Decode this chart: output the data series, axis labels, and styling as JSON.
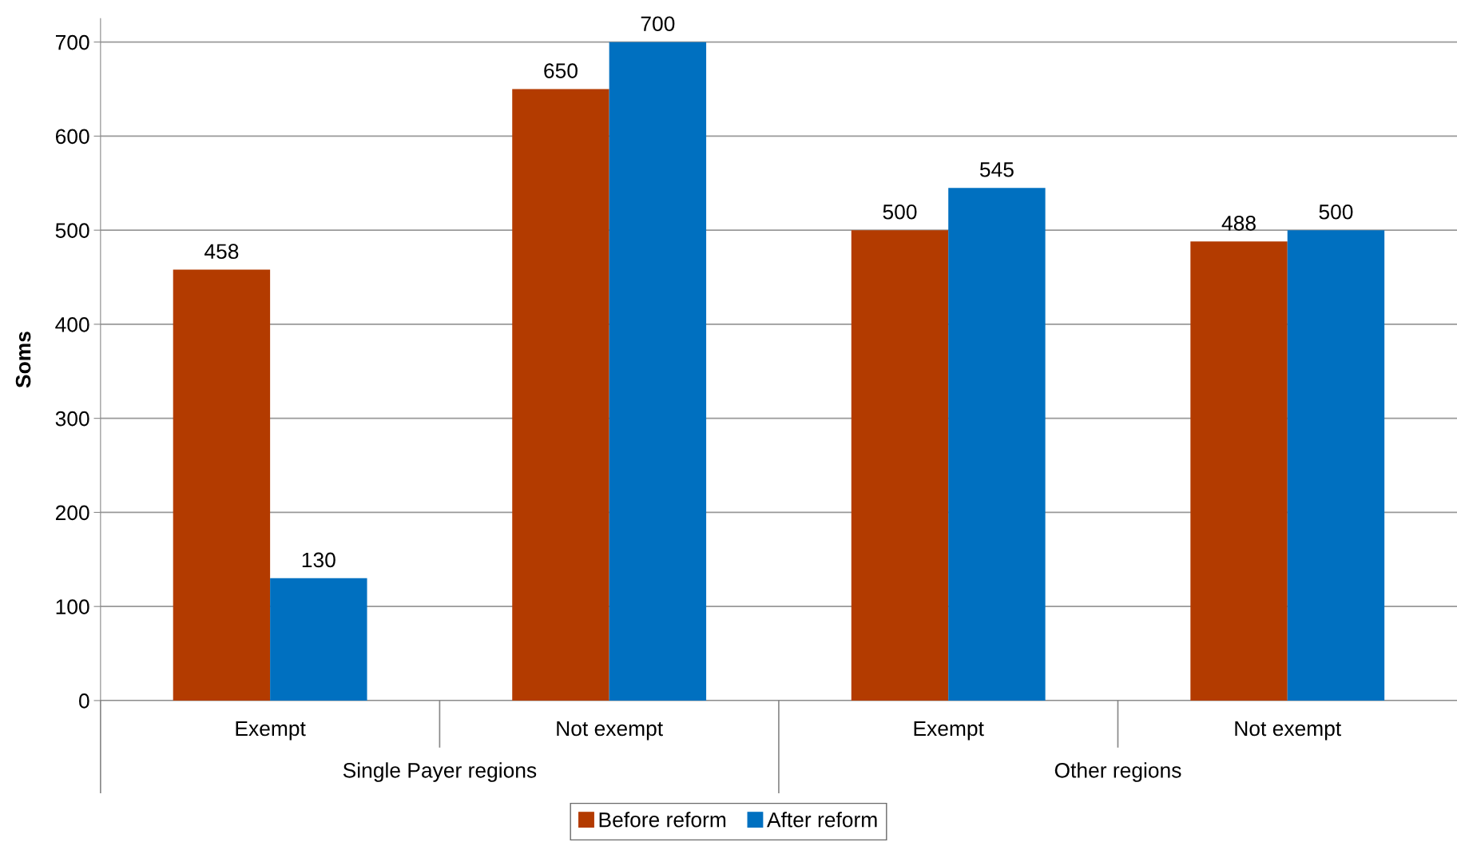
{
  "chart_data": {
    "type": "bar",
    "ylabel": "Soms",
    "categories": [
      "Exempt",
      "Not exempt",
      "Exempt",
      "Not exempt"
    ],
    "series": [
      {
        "name": "Before reform",
        "color": "#b33b00",
        "values": [
          458,
          650,
          500,
          488
        ]
      },
      {
        "name": "After reform",
        "color": "#0070c0",
        "values": [
          130,
          700,
          545,
          500
        ]
      }
    ],
    "annotations": [
      "Single Payer regions",
      "Other regions"
    ],
    "ylim": [
      0,
      725
    ],
    "yticks": [
      0,
      100,
      200,
      300,
      400,
      500,
      600,
      700
    ],
    "grid": "y",
    "legend": "bottom",
    "data_labels": true
  }
}
